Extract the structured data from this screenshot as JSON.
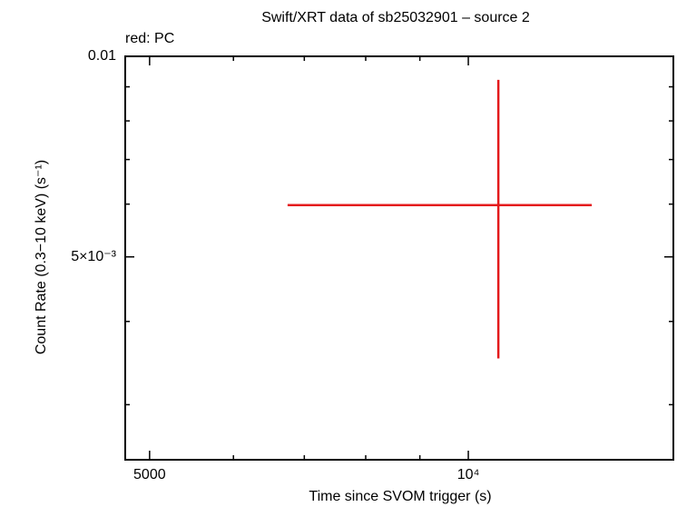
{
  "chart_data": {
    "type": "scatter",
    "title": "Swift/XRT data of sb25032901 – source 2",
    "subtitle": "red: PC",
    "x_label": "Time since SVOM trigger (s)",
    "y_label": "Count Rate (0.3−10 keV) (s⁻¹)",
    "xscale": "log",
    "yscale": "log",
    "xlim": [
      4742,
      15620
    ],
    "ylim": [
      0.00248,
      0.01
    ],
    "xticks": [
      5000,
      {
        "value": 10000,
        "label": "10⁴"
      }
    ],
    "xminor": [
      6000,
      7000,
      8000,
      9000
    ],
    "yticks": [
      0.01,
      {
        "value": 0.005,
        "label": "5×10⁻³"
      }
    ],
    "yminor": [
      0.009,
      0.008,
      0.007,
      0.006,
      0.004,
      0.003
    ],
    "series": [
      {
        "name": "PC",
        "color": "#e41a1c",
        "x": [
          10675
        ],
        "values": [
          0.00598
        ],
        "xerr": [
          [
            3925,
            2405
          ]
        ],
        "yerr": [
          [
            0.00246,
            0.00324
          ]
        ]
      }
    ]
  }
}
